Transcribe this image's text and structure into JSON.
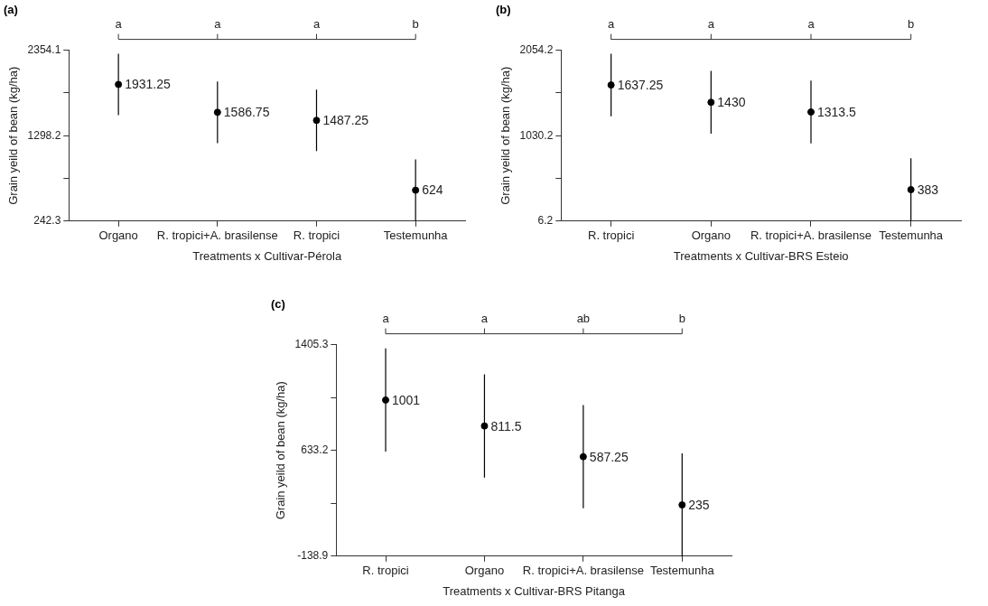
{
  "chart_data": [
    {
      "type": "scatter",
      "title": "(a)",
      "xlabel": "Treatments x Cultivar-Pérola",
      "ylabel": "Grain yeild of bean (kg/ha)",
      "categories": [
        "Organo",
        "R. tropici+A. brasilense",
        "R. tropici",
        "Testemunha"
      ],
      "series": [
        {
          "color": "#000000",
          "values": [
            1931.25,
            1586.75,
            1487.25,
            624
          ],
          "errors": [
            380,
            380,
            380,
            380
          ]
        }
      ],
      "ylim": [
        242.3,
        2354.1
      ],
      "yticks": [
        242.3,
        {
          "value": 770.25,
          "label": null
        },
        1298.2,
        {
          "value": 1826.15,
          "label": null
        },
        2354.1
      ],
      "marker": "circle",
      "data_labels": true,
      "grid": false,
      "legend": false,
      "annotations": [
        {
          "text": "a",
          "x": "Organo"
        },
        {
          "text": "a",
          "x": "R. tropici+A. brasilense"
        },
        {
          "text": "a",
          "x": "R. tropici"
        },
        {
          "text": "b",
          "x": "Testemunha"
        }
      ]
    },
    {
      "type": "scatter",
      "title": "(b)",
      "xlabel": "Treatments x Cultivar-BRS Esteio",
      "ylabel": "Grain yeild of bean (kg/ha)",
      "categories": [
        "R. tropici",
        "Organo",
        "R. tropici+A. brasilense",
        "Testemunha"
      ],
      "series": [
        {
          "color": "#000000",
          "values": [
            1637.25,
            1430,
            1313.5,
            383
          ],
          "errors": [
            376,
            376,
            376,
            376
          ]
        }
      ],
      "ylim": [
        6.2,
        2054.2
      ],
      "yticks": [
        6.2,
        {
          "value": 518.2,
          "label": null
        },
        1030.2,
        {
          "value": 1542.2,
          "label": null
        },
        2054.2
      ],
      "marker": "circle",
      "data_labels": true,
      "grid": false,
      "legend": false,
      "annotations": [
        {
          "text": "a",
          "x": "R. tropici"
        },
        {
          "text": "a",
          "x": "Organo"
        },
        {
          "text": "a",
          "x": "R. tropici+A. brasilense"
        },
        {
          "text": "b",
          "x": "Testemunha"
        }
      ]
    },
    {
      "type": "scatter",
      "title": "(c)",
      "xlabel": "Treatments x Cultivar-BRS Pitanga",
      "ylabel": "Grain yeild of bean (kg/ha)",
      "categories": [
        "R. tropici",
        "Organo",
        "R. tropici+A. brasilense",
        "Testemunha"
      ],
      "series": [
        {
          "color": "#000000",
          "values": [
            1001,
            811.5,
            587.25,
            235
          ],
          "errors": [
            377,
            377,
            377,
            377
          ]
        }
      ],
      "ylim": [
        -138.9,
        1405.3
      ],
      "yticks": [
        -138.9,
        {
          "value": 247.15,
          "label": null
        },
        633.2,
        {
          "value": 1019.25,
          "label": null
        },
        1405.3
      ],
      "marker": "circle",
      "data_labels": true,
      "grid": false,
      "legend": false,
      "annotations": [
        {
          "text": "a",
          "x": "R. tropici"
        },
        {
          "text": "a",
          "x": "Organo"
        },
        {
          "text": "ab",
          "x": "R. tropici+A. brasilense"
        },
        {
          "text": "b",
          "x": "Testemunha"
        }
      ]
    }
  ]
}
